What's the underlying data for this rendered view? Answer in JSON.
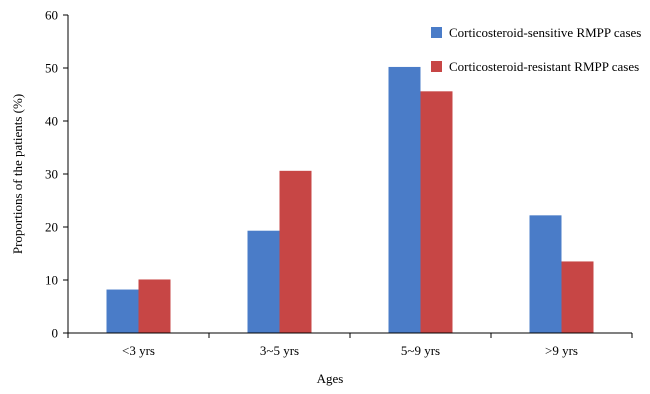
{
  "chart_data": {
    "type": "bar",
    "title": "",
    "xlabel": "Ages",
    "ylabel": "Proportions of the patients (%)",
    "categories": [
      "<3 yrs",
      "3~5 yrs",
      "5~9 yrs",
      ">9 yrs"
    ],
    "series": [
      {
        "name": "Corticosteroid-sensitive RMPP cases",
        "color": "#4A7CC8",
        "values": [
          8.2,
          19.3,
          50.2,
          22.2
        ]
      },
      {
        "name": "Corticosteroid-resistant RMPP cases",
        "color": "#C74645",
        "values": [
          10.1,
          30.6,
          45.6,
          13.5
        ]
      }
    ],
    "ylim": [
      0,
      60
    ],
    "yticks": [
      0,
      10,
      20,
      30,
      40,
      50,
      60
    ],
    "grid": false,
    "legend_position": "top-right"
  }
}
